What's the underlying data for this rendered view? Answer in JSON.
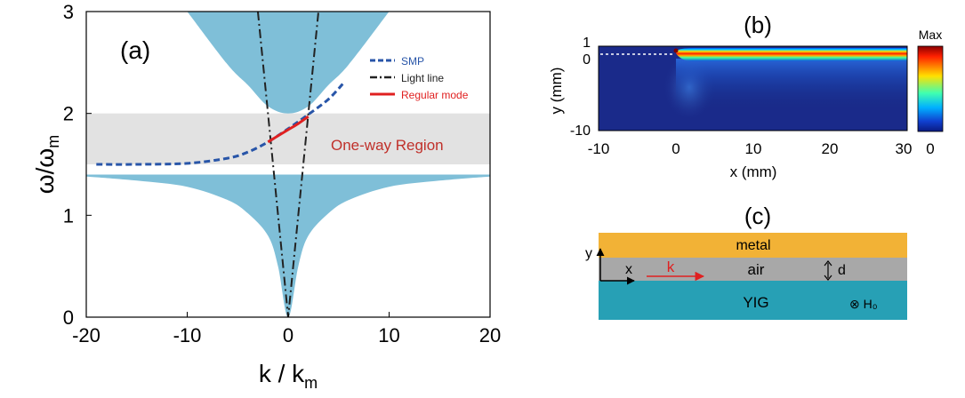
{
  "panel_a": {
    "label": "(a)",
    "region_label": "One-way Region",
    "x_ticks": [
      "-20",
      "-10",
      "0",
      "10",
      "20"
    ],
    "y_ticks": [
      "0",
      "1",
      "2",
      "3"
    ],
    "ylabel_main": "ω/ω",
    "ylabel_sub": "m",
    "xlabel_main": "k / k",
    "xlabel_sub": "m",
    "legend": [
      {
        "label": "SMP",
        "color": "#2855a8",
        "style": "dashed"
      },
      {
        "label": "Light line",
        "color": "#222222",
        "style": "dashdot"
      },
      {
        "label": "Regular mode",
        "color": "#e02020",
        "style": "solid"
      }
    ],
    "colors": {
      "band_fill": "#7fbfd8",
      "region_fill": "#e2e2e2",
      "smp": "#2855a8",
      "regular": "#e02020",
      "region_text": "#c0302a"
    }
  },
  "chart_data": [
    {
      "type": "line",
      "panel": "(a)",
      "xlabel": "k / k_m",
      "ylabel": "ω/ω_m",
      "xlim": [
        -20,
        20
      ],
      "ylim": [
        0,
        3
      ],
      "one_way_region": [
        1.5,
        2.0
      ],
      "series": [
        {
          "name": "SMP",
          "x": [
            -19,
            -15,
            -10,
            -6,
            -4,
            -2,
            0,
            2,
            4,
            5.5
          ],
          "y": [
            1.5,
            1.5,
            1.51,
            1.56,
            1.62,
            1.72,
            1.85,
            1.99,
            2.14,
            2.3
          ]
        },
        {
          "name": "Light line",
          "x": [
            -3,
            0,
            3
          ],
          "y": [
            3,
            0,
            3
          ]
        },
        {
          "name": "Regular mode",
          "x": [
            -2,
            -1,
            0,
            1,
            2
          ],
          "y": [
            1.72,
            1.78,
            1.84,
            1.9,
            1.97
          ]
        }
      ],
      "bands": [
        {
          "x": [
            -10,
            -6,
            -4,
            -2,
            0,
            2,
            4,
            6,
            10
          ],
          "y": [
            3,
            2.48,
            2.28,
            2.07,
            2.0,
            2.07,
            2.28,
            2.48,
            3
          ]
        },
        {
          "x": [
            -20,
            -15,
            -10,
            -6,
            -4,
            -2,
            -1,
            0,
            1,
            2,
            4,
            6,
            10,
            15,
            20
          ],
          "y": [
            1.38,
            1.34,
            1.28,
            1.15,
            1.02,
            0.8,
            0.5,
            0,
            0.5,
            0.8,
            1.02,
            1.15,
            1.28,
            1.34,
            1.38
          ]
        }
      ]
    },
    {
      "type": "heatmap",
      "panel": "(b)",
      "xlabel": "x (mm)",
      "ylabel": "y (mm)",
      "xlim": [
        -10,
        30
      ],
      "ylim": [
        -10,
        1
      ],
      "x_ticks": [
        "-10",
        "0",
        "10",
        "20",
        "30"
      ],
      "y_ticks": [
        "1",
        "0",
        "-10"
      ],
      "colorbar_labels": [
        "Max",
        "0"
      ]
    }
  ],
  "panel_b": {
    "label": "(b)"
  },
  "panel_c": {
    "label": "(c)",
    "layers": {
      "metal": "metal",
      "air": "air",
      "yig": "YIG"
    },
    "axis_y": "y",
    "axis_x": "x",
    "wave": "k",
    "thickness": "d",
    "field": "⊗ H₀",
    "colors": {
      "metal": "#f2b236",
      "air": "#a8a8a8",
      "yig": "#27a0b5",
      "wave": "#e02020"
    }
  }
}
